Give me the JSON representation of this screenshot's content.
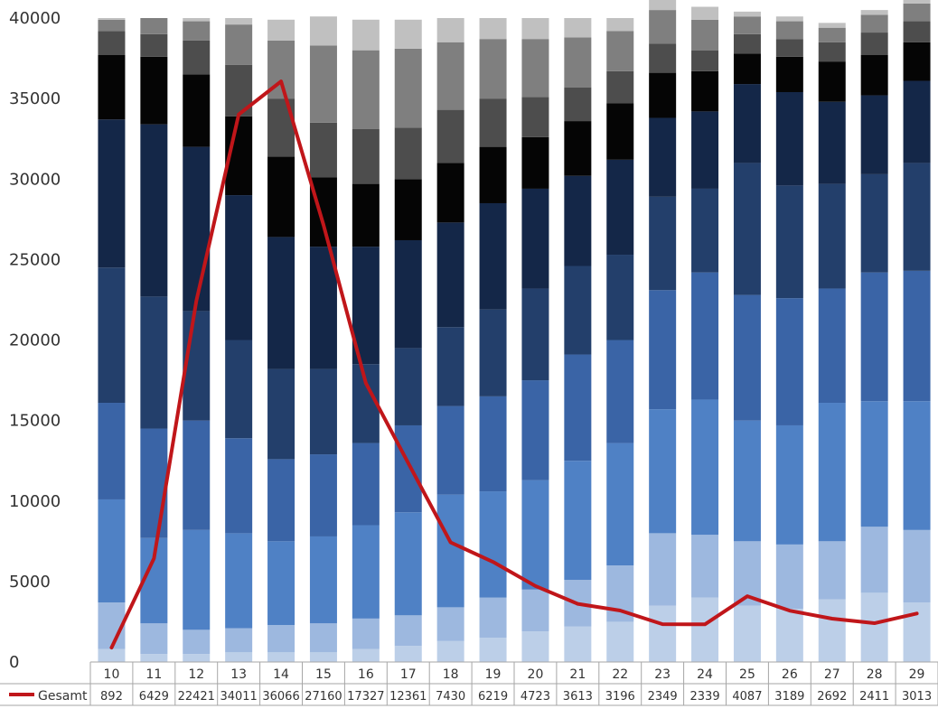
{
  "chart_data": {
    "type": "bar",
    "subtype": "stacked-bar-with-line",
    "categories": [
      "10",
      "11",
      "12",
      "13",
      "14",
      "15",
      "16",
      "17",
      "18",
      "19",
      "20",
      "21",
      "22",
      "23",
      "24",
      "25",
      "26",
      "27",
      "28",
      "29"
    ],
    "y_ticks": [
      "0",
      "5000",
      "10000",
      "15000",
      "20000",
      "25000",
      "30000",
      "35000",
      "40000"
    ],
    "ylim": [
      0,
      40000
    ],
    "stack_series": [
      {
        "color": "#BCCFE8",
        "values": [
          800,
          500,
          500,
          600,
          600,
          600,
          800,
          1000,
          1300,
          1500,
          1900,
          2200,
          2500,
          3500,
          4000,
          3500,
          3300,
          3900,
          4300,
          3700
        ]
      },
      {
        "color": "#9DB8DF",
        "values": [
          2900,
          1900,
          1500,
          1500,
          1700,
          1800,
          1900,
          1900,
          2100,
          2500,
          2600,
          2900,
          3500,
          4500,
          3900,
          4000,
          4000,
          3600,
          4100,
          4500
        ]
      },
      {
        "color": "#4F81C5",
        "values": [
          6400,
          5300,
          6200,
          5900,
          5200,
          5400,
          5800,
          6400,
          7000,
          6600,
          6800,
          7400,
          7600,
          7700,
          8400,
          7500,
          7400,
          8600,
          7800,
          8000
        ]
      },
      {
        "color": "#3A64A6",
        "values": [
          6000,
          6800,
          6800,
          5900,
          5100,
          5100,
          5100,
          5400,
          5500,
          5900,
          6200,
          6600,
          6400,
          7400,
          7900,
          7800,
          7900,
          7100,
          8000,
          8100
        ]
      },
      {
        "color": "#233F6B",
        "values": [
          8400,
          8200,
          6800,
          6100,
          5600,
          5300,
          4900,
          4800,
          4900,
          5400,
          5700,
          5500,
          5300,
          5800,
          5200,
          8200,
          7000,
          6500,
          6100,
          6700
        ]
      },
      {
        "color": "#142748",
        "values": [
          9200,
          10700,
          10200,
          9000,
          8200,
          7600,
          7300,
          6700,
          6500,
          6600,
          6200,
          5600,
          5900,
          4900,
          4800,
          4900,
          5800,
          5100,
          4900,
          5100
        ]
      },
      {
        "color": "#050505",
        "values": [
          4000,
          4200,
          4500,
          4900,
          5000,
          4300,
          3900,
          3800,
          3700,
          3500,
          3200,
          3400,
          3500,
          2800,
          2500,
          1900,
          2200,
          2500,
          2500,
          2400
        ]
      },
      {
        "color": "#4D4D4D",
        "values": [
          1500,
          1400,
          2100,
          3200,
          3600,
          3400,
          3400,
          3200,
          3300,
          3000,
          2500,
          2100,
          2000,
          1800,
          1300,
          1200,
          1100,
          1200,
          1400,
          1300
        ]
      },
      {
        "color": "#7F7F7F",
        "values": [
          700,
          1000,
          1200,
          2500,
          3600,
          4800,
          4900,
          4900,
          4200,
          3700,
          3600,
          3100,
          2500,
          2100,
          1900,
          1100,
          1100,
          900,
          1100,
          1100
        ]
      },
      {
        "color": "#C0C0C0",
        "values": [
          100,
          0,
          200,
          400,
          1300,
          1800,
          1900,
          1800,
          1500,
          1300,
          1300,
          1200,
          800,
          900,
          800,
          300,
          300,
          300,
          300,
          300
        ]
      }
    ],
    "line_series": {
      "name": "Gesamt",
      "color": "#C0161A",
      "values": [
        892,
        6429,
        22421,
        34011,
        36066,
        27160,
        17327,
        12361,
        7430,
        6219,
        4723,
        3613,
        3196,
        2349,
        2339,
        4087,
        3189,
        2692,
        2411,
        3013
      ],
      "labels": [
        "892",
        "6429",
        "22421",
        "34011",
        "36066",
        "27160",
        "17327",
        "12361",
        "7430",
        "6219",
        "4723",
        "3613",
        "3196",
        "2349",
        "2339",
        "4087",
        "3189",
        "2692",
        "2411",
        "3013"
      ]
    },
    "legend_placement": "data-table-left",
    "grid": false
  }
}
